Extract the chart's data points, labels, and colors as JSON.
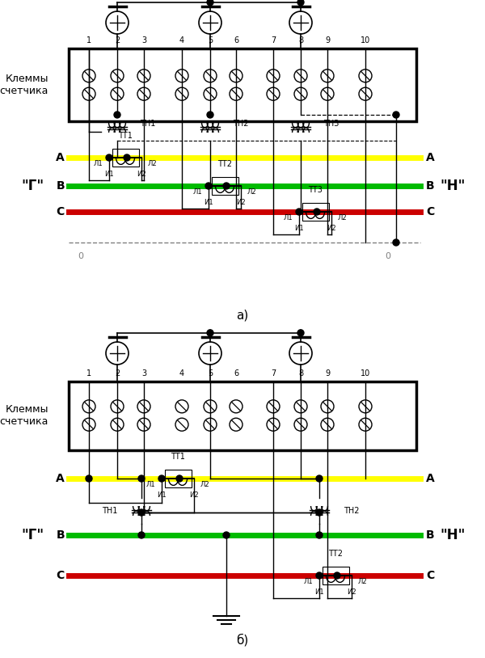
{
  "bg_color": "#ffffff",
  "phase_A_color": "#ffff00",
  "phase_B_color": "#00bb00",
  "phase_C_color": "#cc0000",
  "fig_width": 6.0,
  "fig_height": 8.14,
  "label_klemmy": "Клеммы\nсчетчика",
  "label_G": "\"Г\"",
  "label_N": "\"Н\"",
  "label_a": "а)",
  "label_b": "б)"
}
